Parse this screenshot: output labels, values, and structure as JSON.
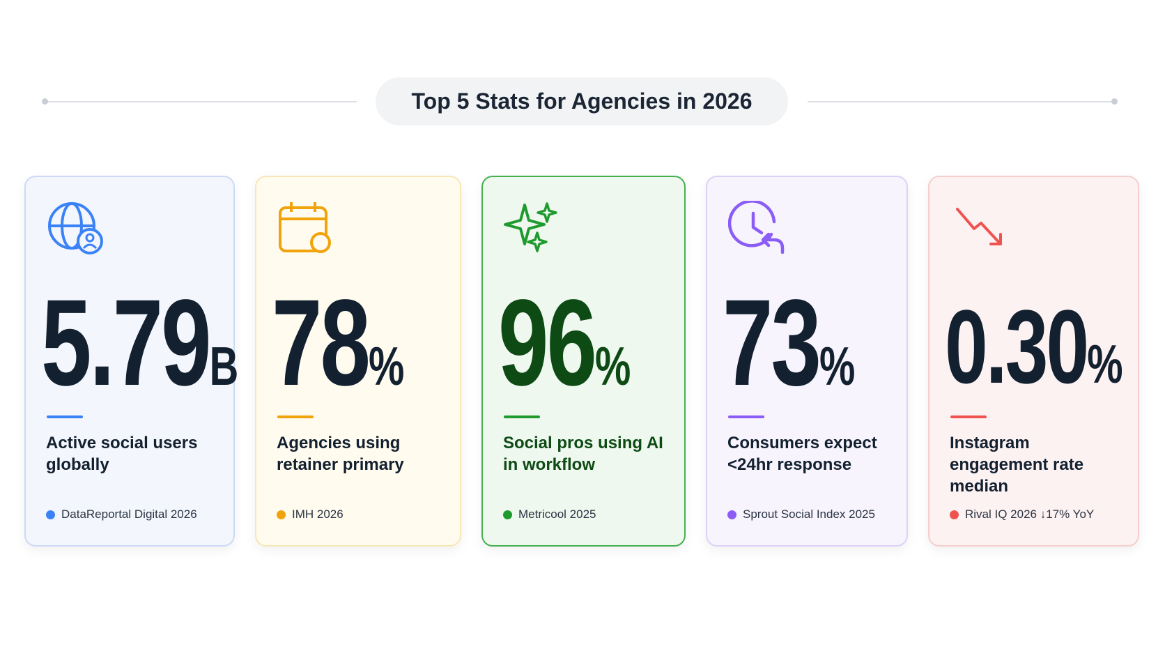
{
  "title": "Top 5 Stats for Agencies in 2026",
  "cards": [
    {
      "value": "5.79",
      "unit": "B",
      "label": "Active social users globally",
      "source": "DataReportal Digital 2026"
    },
    {
      "value": "78",
      "unit": "%",
      "label": "Agencies using retainer primary",
      "source": "IMH 2026"
    },
    {
      "value": "96",
      "unit": "%",
      "label": "Social pros using AI in workflow",
      "source": "Metricool 2025"
    },
    {
      "value": "73",
      "unit": "%",
      "label": "Consumers expect <24hr response",
      "source": "Sprout Social Index 2025"
    },
    {
      "value": "0.30",
      "unit": "%",
      "label": "Instagram engagement rate median",
      "source": "Rival IQ 2026 ↓17% YoY"
    }
  ]
}
